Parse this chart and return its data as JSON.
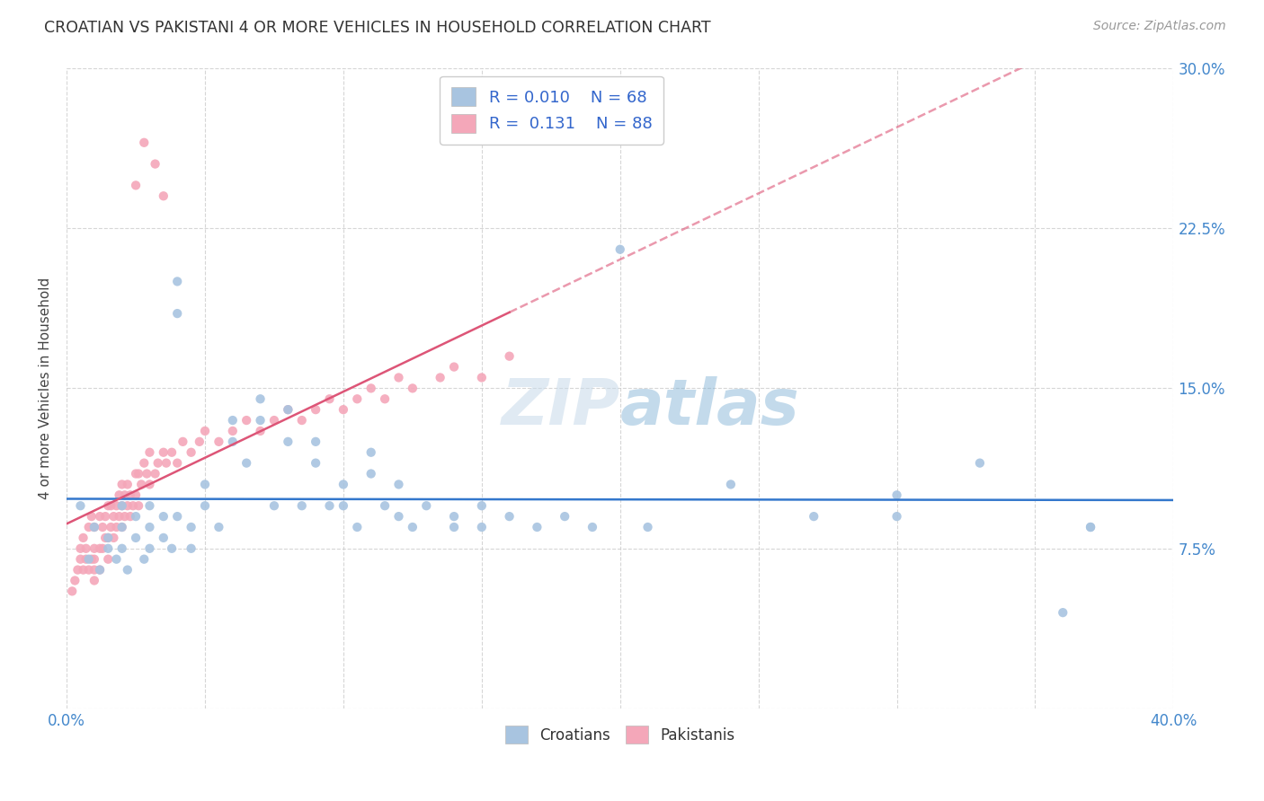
{
  "title": "CROATIAN VS PAKISTANI 4 OR MORE VEHICLES IN HOUSEHOLD CORRELATION CHART",
  "source": "Source: ZipAtlas.com",
  "ylabel": "4 or more Vehicles in Household",
  "xlim": [
    0.0,
    0.4
  ],
  "ylim": [
    0.0,
    0.3
  ],
  "xticks": [
    0.0,
    0.05,
    0.1,
    0.15,
    0.2,
    0.25,
    0.3,
    0.35,
    0.4
  ],
  "yticks": [
    0.0,
    0.075,
    0.15,
    0.225,
    0.3
  ],
  "croatian_color": "#a8c4e0",
  "pakistani_color": "#f4a7b9",
  "trendline_croatian_color": "#3377cc",
  "trendline_pakistani_color": "#dd5577",
  "legend_R_color": "#3366cc",
  "R_croatian": 0.01,
  "N_croatian": 68,
  "R_pakistani": 0.131,
  "N_pakistani": 88,
  "watermark": "ZIPatlas",
  "background_color": "#ffffff",
  "grid_color": "#cccccc",
  "croatians_x": [
    0.005,
    0.008,
    0.01,
    0.012,
    0.015,
    0.015,
    0.018,
    0.02,
    0.02,
    0.02,
    0.022,
    0.025,
    0.025,
    0.028,
    0.03,
    0.03,
    0.03,
    0.035,
    0.035,
    0.038,
    0.04,
    0.04,
    0.04,
    0.045,
    0.045,
    0.05,
    0.05,
    0.055,
    0.06,
    0.06,
    0.065,
    0.07,
    0.07,
    0.075,
    0.08,
    0.08,
    0.085,
    0.09,
    0.09,
    0.095,
    0.1,
    0.1,
    0.105,
    0.11,
    0.11,
    0.115,
    0.12,
    0.12,
    0.125,
    0.13,
    0.14,
    0.14,
    0.15,
    0.15,
    0.16,
    0.17,
    0.18,
    0.19,
    0.2,
    0.21,
    0.24,
    0.27,
    0.3,
    0.3,
    0.33,
    0.36,
    0.37,
    0.37
  ],
  "croatians_y": [
    0.095,
    0.07,
    0.085,
    0.065,
    0.08,
    0.075,
    0.07,
    0.095,
    0.085,
    0.075,
    0.065,
    0.09,
    0.08,
    0.07,
    0.095,
    0.085,
    0.075,
    0.09,
    0.08,
    0.075,
    0.2,
    0.185,
    0.09,
    0.085,
    0.075,
    0.105,
    0.095,
    0.085,
    0.135,
    0.125,
    0.115,
    0.145,
    0.135,
    0.095,
    0.14,
    0.125,
    0.095,
    0.125,
    0.115,
    0.095,
    0.105,
    0.095,
    0.085,
    0.12,
    0.11,
    0.095,
    0.105,
    0.09,
    0.085,
    0.095,
    0.09,
    0.085,
    0.095,
    0.085,
    0.09,
    0.085,
    0.09,
    0.085,
    0.215,
    0.085,
    0.105,
    0.09,
    0.1,
    0.09,
    0.115,
    0.045,
    0.085,
    0.085
  ],
  "pakistanis_x": [
    0.002,
    0.003,
    0.004,
    0.005,
    0.005,
    0.006,
    0.006,
    0.007,
    0.007,
    0.008,
    0.008,
    0.009,
    0.009,
    0.01,
    0.01,
    0.01,
    0.01,
    0.01,
    0.012,
    0.012,
    0.012,
    0.013,
    0.013,
    0.014,
    0.014,
    0.015,
    0.015,
    0.015,
    0.016,
    0.016,
    0.017,
    0.017,
    0.018,
    0.018,
    0.019,
    0.019,
    0.02,
    0.02,
    0.02,
    0.021,
    0.021,
    0.022,
    0.022,
    0.023,
    0.023,
    0.024,
    0.025,
    0.025,
    0.026,
    0.026,
    0.027,
    0.028,
    0.029,
    0.03,
    0.03,
    0.032,
    0.033,
    0.035,
    0.036,
    0.038,
    0.04,
    0.042,
    0.045,
    0.048,
    0.05,
    0.055,
    0.06,
    0.065,
    0.07,
    0.075,
    0.08,
    0.085,
    0.09,
    0.095,
    0.1,
    0.105,
    0.11,
    0.115,
    0.12,
    0.125,
    0.135,
    0.14,
    0.15,
    0.16,
    0.025,
    0.028,
    0.032,
    0.035
  ],
  "pakistanis_y": [
    0.055,
    0.06,
    0.065,
    0.07,
    0.075,
    0.065,
    0.08,
    0.07,
    0.075,
    0.065,
    0.085,
    0.07,
    0.09,
    0.06,
    0.065,
    0.07,
    0.075,
    0.085,
    0.065,
    0.075,
    0.09,
    0.075,
    0.085,
    0.08,
    0.09,
    0.07,
    0.08,
    0.095,
    0.085,
    0.095,
    0.08,
    0.09,
    0.085,
    0.095,
    0.09,
    0.1,
    0.085,
    0.095,
    0.105,
    0.09,
    0.1,
    0.095,
    0.105,
    0.09,
    0.1,
    0.095,
    0.1,
    0.11,
    0.095,
    0.11,
    0.105,
    0.115,
    0.11,
    0.105,
    0.12,
    0.11,
    0.115,
    0.12,
    0.115,
    0.12,
    0.115,
    0.125,
    0.12,
    0.125,
    0.13,
    0.125,
    0.13,
    0.135,
    0.13,
    0.135,
    0.14,
    0.135,
    0.14,
    0.145,
    0.14,
    0.145,
    0.15,
    0.145,
    0.155,
    0.15,
    0.155,
    0.16,
    0.155,
    0.165,
    0.245,
    0.265,
    0.255,
    0.24
  ]
}
